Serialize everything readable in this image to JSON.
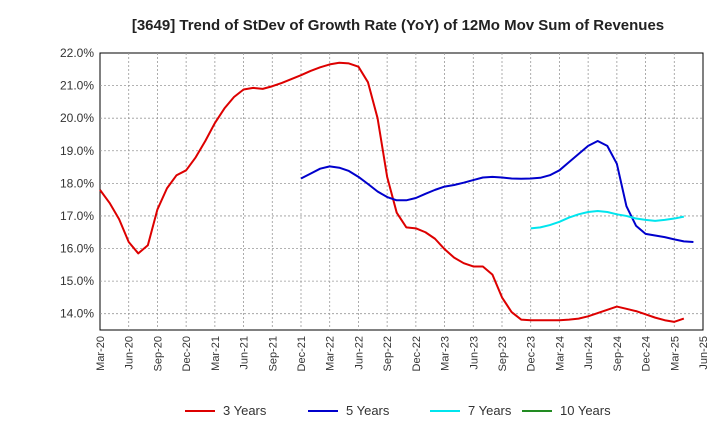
{
  "chart_data": {
    "type": "line",
    "title": "[3649]  Trend of StDev of Growth Rate (YoY) of 12Mo Mov Sum of Revenues",
    "xlabel": "",
    "ylabel": "",
    "ylim": [
      13.5,
      22.0
    ],
    "y_ticks": [
      "14.0%",
      "15.0%",
      "16.0%",
      "17.0%",
      "18.0%",
      "19.0%",
      "20.0%",
      "21.0%",
      "22.0%"
    ],
    "y_tick_values": [
      14,
      15,
      16,
      17,
      18,
      19,
      20,
      21,
      22
    ],
    "x_tick_labels": [
      "Mar-20",
      "Jun-20",
      "Sep-20",
      "Dec-20",
      "Mar-21",
      "Jun-21",
      "Sep-21",
      "Dec-21",
      "Mar-22",
      "Jun-22",
      "Sep-22",
      "Dec-22",
      "Mar-23",
      "Jun-23",
      "Sep-23",
      "Dec-23",
      "Mar-24",
      "Jun-24",
      "Sep-24",
      "Dec-24",
      "Mar-25",
      "Jun-25"
    ],
    "x_start": "Mar-20",
    "x_months_total": 63,
    "grid": true,
    "legend_position": "bottom",
    "series": [
      {
        "name": "3 Years",
        "color": "#dd0000",
        "start_month_index": 0,
        "values": [
          17.8,
          17.4,
          16.9,
          16.2,
          15.85,
          16.1,
          17.2,
          17.85,
          18.25,
          18.4,
          18.8,
          19.3,
          19.85,
          20.3,
          20.65,
          20.88,
          20.93,
          20.9,
          20.98,
          21.08,
          21.2,
          21.32,
          21.45,
          21.56,
          21.65,
          21.7,
          21.68,
          21.58,
          21.1,
          20.0,
          18.2,
          17.1,
          16.65,
          16.62,
          16.5,
          16.3,
          15.98,
          15.72,
          15.55,
          15.45,
          15.45,
          15.2,
          14.5,
          14.05,
          13.82,
          13.8,
          13.8,
          13.8,
          13.8,
          13.82,
          13.85,
          13.92,
          14.02,
          14.12,
          14.22,
          14.15,
          14.08,
          13.98,
          13.88,
          13.8,
          13.75,
          13.85
        ]
      },
      {
        "name": "5 Years",
        "color": "#0000cc",
        "start_month_index": 21,
        "values": [
          18.15,
          18.3,
          18.45,
          18.52,
          18.48,
          18.38,
          18.2,
          17.98,
          17.75,
          17.58,
          17.48,
          17.48,
          17.55,
          17.68,
          17.8,
          17.9,
          17.95,
          18.02,
          18.1,
          18.18,
          18.2,
          18.18,
          18.15,
          18.14,
          18.15,
          18.17,
          18.25,
          18.4,
          18.65,
          18.9,
          19.15,
          19.3,
          19.15,
          18.6,
          17.3,
          16.7,
          16.45,
          16.4,
          16.35,
          16.28,
          16.22,
          16.2
        ]
      },
      {
        "name": "7 Years",
        "color": "#00e5ee",
        "start_month_index": 45,
        "values": [
          16.62,
          16.65,
          16.72,
          16.82,
          16.95,
          17.05,
          17.12,
          17.15,
          17.12,
          17.05,
          17.0,
          16.92,
          16.88,
          16.85,
          16.88,
          16.92,
          16.98
        ]
      },
      {
        "name": "10 Years",
        "color": "#228b22",
        "start_month_index": 0,
        "values": []
      }
    ]
  }
}
